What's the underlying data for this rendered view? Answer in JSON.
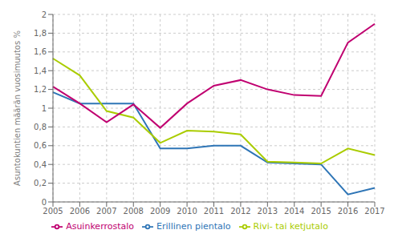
{
  "chart_data": {
    "type": "line",
    "categories": [
      "2005",
      "2006",
      "2007",
      "2008",
      "2009",
      "2010",
      "2011",
      "2012",
      "2013",
      "2014",
      "2015",
      "2016",
      "2017"
    ],
    "series": [
      {
        "name": "Erillinen pientalo",
        "color": "#2E75B6",
        "values": [
          1.17,
          1.05,
          1.05,
          1.05,
          0.57,
          0.57,
          0.6,
          0.6,
          0.42,
          0.41,
          0.4,
          0.08,
          0.15
        ]
      },
      {
        "name": "Rivi- tai ketjutalo",
        "color": "#AACC00",
        "values": [
          1.53,
          1.35,
          0.97,
          0.9,
          0.63,
          0.76,
          0.75,
          0.72,
          0.43,
          0.42,
          0.41,
          0.57,
          0.5
        ]
      },
      {
        "name": "Asuinkerrostalo",
        "color": "#C00070",
        "values": [
          1.23,
          1.05,
          0.85,
          1.04,
          0.79,
          1.05,
          1.24,
          1.3,
          1.2,
          1.14,
          1.13,
          1.7,
          1.9
        ]
      }
    ],
    "y_label": "Asuntokuntien määrän vuosimuutos %",
    "ylim": [
      0,
      2.0
    ],
    "yticks": [
      0,
      {
        "value": 0.2,
        "label": "0,2"
      },
      {
        "value": 0.4,
        "label": "0,4"
      },
      {
        "value": 0.6,
        "label": "0,6"
      },
      {
        "value": 0.8,
        "label": "0,8"
      },
      1,
      {
        "value": 1.2,
        "label": "1,2"
      },
      {
        "value": 1.4,
        "label": "1,4"
      },
      {
        "value": 1.6,
        "label": "1,6"
      },
      {
        "value": 1.8,
        "label": "1,8"
      },
      2
    ],
    "grid": true,
    "legend": "bottom"
  }
}
